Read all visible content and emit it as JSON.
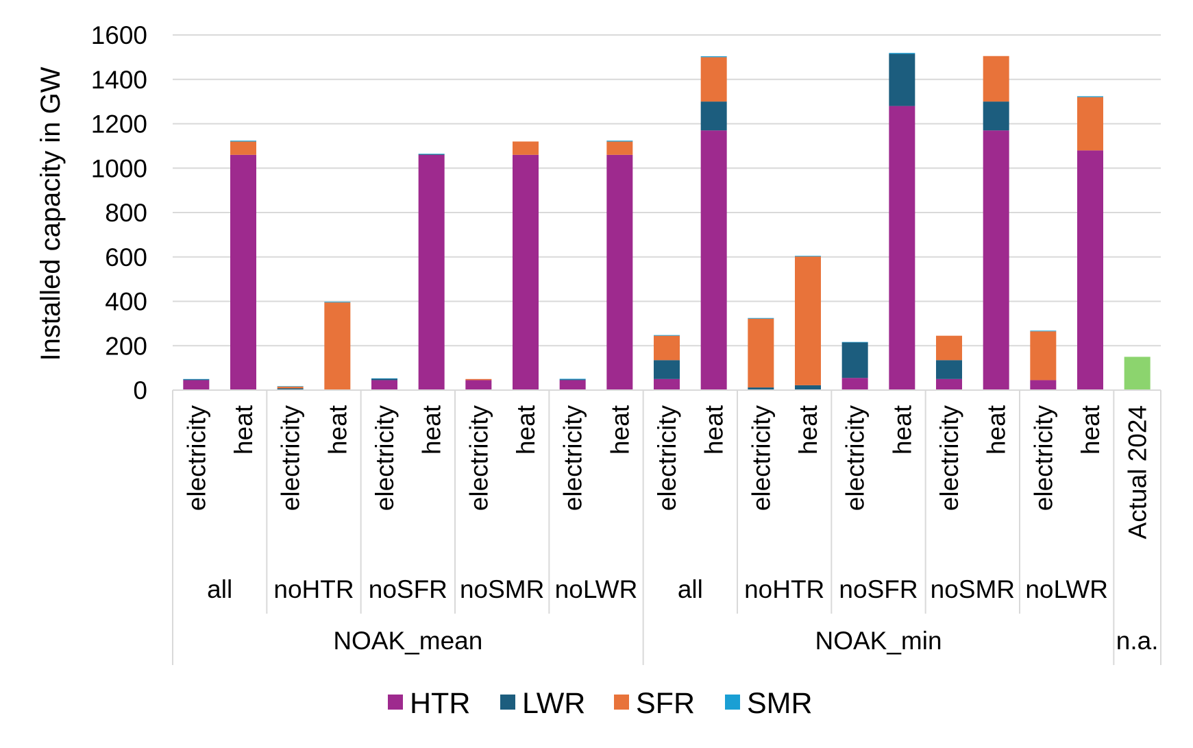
{
  "chart_data": {
    "type": "bar",
    "stacked": true,
    "ylabel": "Installed capacity in GW",
    "ylim": [
      0,
      1600
    ],
    "yticks": [
      0,
      200,
      400,
      600,
      800,
      1000,
      1200,
      1400,
      1600
    ],
    "grid": true,
    "legend_position": "bottom",
    "colors": {
      "HTR": "#9e2a8e",
      "LWR": "#1c5d7e",
      "SFR": "#e8733a",
      "SMR": "#1a9fd4",
      "Actual 2024": "#8cd46e"
    },
    "level1_categories": [
      "electricity",
      "heat",
      "electricity",
      "heat",
      "electricity",
      "heat",
      "electricity",
      "heat",
      "electricity",
      "heat",
      "electricity",
      "heat",
      "electricity",
      "heat",
      "electricity",
      "heat",
      "electricity",
      "heat",
      "electricity",
      "heat",
      "Actual 2024"
    ],
    "level2_groups": [
      {
        "label": "all",
        "span": 2
      },
      {
        "label": "noHTR",
        "span": 2
      },
      {
        "label": "noSFR",
        "span": 2
      },
      {
        "label": "noSMR",
        "span": 2
      },
      {
        "label": "noLWR",
        "span": 2
      },
      {
        "label": "all",
        "span": 2
      },
      {
        "label": "noHTR",
        "span": 2
      },
      {
        "label": "noSFR",
        "span": 2
      },
      {
        "label": "noSMR",
        "span": 2
      },
      {
        "label": "noLWR",
        "span": 2
      },
      {
        "label": "",
        "span": 1
      }
    ],
    "level3_groups": [
      {
        "label": "NOAK_mean",
        "span": 10
      },
      {
        "label": "NOAK_min",
        "span": 10
      },
      {
        "label": "n.a.",
        "span": 1
      }
    ],
    "series": [
      {
        "name": "HTR",
        "values": [
          45,
          1060,
          0,
          0,
          45,
          1060,
          45,
          1060,
          45,
          1060,
          50,
          1170,
          0,
          0,
          55,
          1280,
          50,
          1170,
          45,
          1080,
          0
        ]
      },
      {
        "name": "LWR",
        "values": [
          3,
          0,
          8,
          0,
          6,
          3,
          0,
          0,
          3,
          0,
          85,
          130,
          12,
          22,
          160,
          235,
          85,
          130,
          0,
          0,
          0
        ]
      },
      {
        "name": "SFR",
        "values": [
          0,
          60,
          8,
          395,
          0,
          0,
          5,
          60,
          0,
          60,
          110,
          200,
          310,
          580,
          0,
          0,
          110,
          205,
          220,
          240,
          0
        ]
      },
      {
        "name": "SMR",
        "values": [
          2,
          4,
          2,
          3,
          2,
          2,
          0,
          0,
          3,
          4,
          3,
          4,
          3,
          3,
          2,
          4,
          0,
          0,
          3,
          4,
          0
        ]
      },
      {
        "name": "Actual 2024",
        "values": [
          0,
          0,
          0,
          0,
          0,
          0,
          0,
          0,
          0,
          0,
          0,
          0,
          0,
          0,
          0,
          0,
          0,
          0,
          0,
          0,
          150
        ],
        "in_legend": false
      }
    ],
    "legend": [
      "HTR",
      "LWR",
      "SFR",
      "SMR"
    ]
  }
}
